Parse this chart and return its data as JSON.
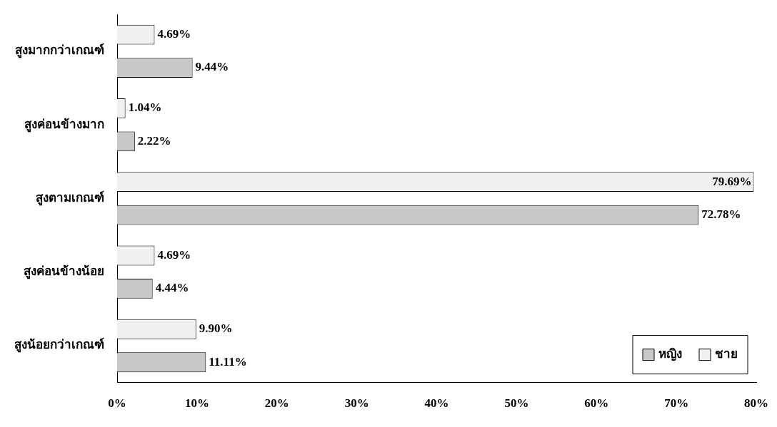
{
  "chart_data": {
    "type": "bar",
    "orientation": "horizontal",
    "categories": [
      "สูงมากกว่าเกณฑ์",
      "สูงค่อนข้างมาก",
      "สูงตามเกณฑ์",
      "สูงค่อนข้างน้อย",
      "สูงน้อยกว่าเกณฑ์"
    ],
    "series": [
      {
        "name": "ชาย",
        "color": "#f0f0f0",
        "values": [
          4.69,
          1.04,
          79.69,
          4.69,
          9.9
        ],
        "value_labels": [
          "4.69%",
          "1.04%",
          "79.69%",
          "4.69%",
          "9.90%"
        ]
      },
      {
        "name": "หญิง",
        "color": "#c8c8c8",
        "values": [
          9.44,
          2.22,
          72.78,
          4.44,
          11.11
        ],
        "value_labels": [
          "9.44%",
          "2.22%",
          "72.78%",
          "4.44%",
          "11.11%"
        ]
      }
    ],
    "xlim": [
      0,
      80
    ],
    "xticks": [
      {
        "value": 0,
        "label": "0%"
      },
      {
        "value": 10,
        "label": "10%"
      },
      {
        "value": 20,
        "label": "20%"
      },
      {
        "value": 30,
        "label": "30%"
      },
      {
        "value": 40,
        "label": "40%"
      },
      {
        "value": 50,
        "label": "50%"
      },
      {
        "value": 60,
        "label": "60%"
      },
      {
        "value": 70,
        "label": "70%"
      },
      {
        "value": 80,
        "label": "80%"
      }
    ],
    "grid": false,
    "legend": "bottom right"
  }
}
